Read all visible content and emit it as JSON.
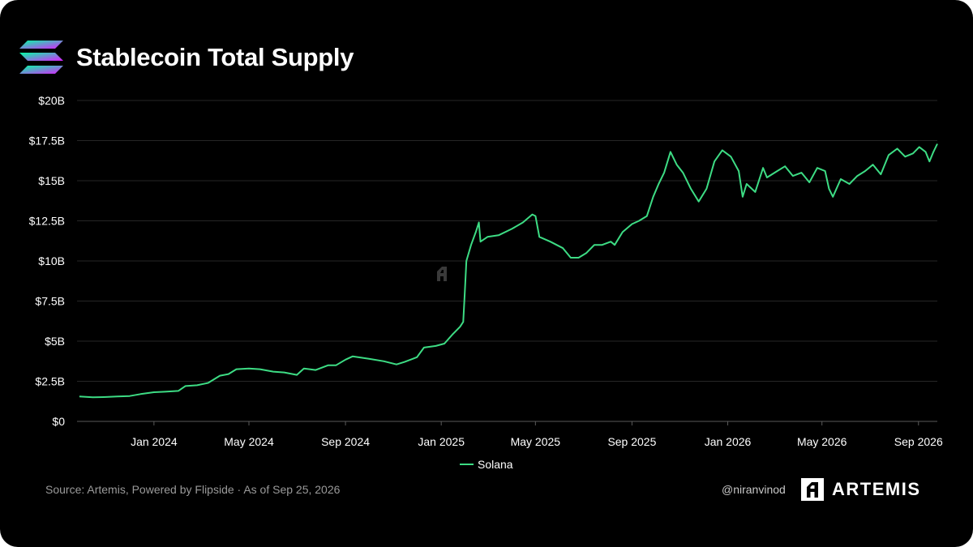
{
  "header": {
    "title": "Stablecoin Total Supply",
    "logo_icon": "solana-logo-icon"
  },
  "chart_data": {
    "type": "line",
    "title": "Stablecoin Total Supply",
    "xlabel": "",
    "ylabel": "",
    "ylim": [
      0,
      20
    ],
    "y_unit": "$B",
    "y_ticks": [
      0,
      2.5,
      5,
      7.5,
      10,
      12.5,
      15,
      17.5,
      20
    ],
    "y_tick_labels": [
      "$0",
      "$2.5B",
      "$5B",
      "$7.5B",
      "$10B",
      "$12.5B",
      "$15B",
      "$17.5B",
      "$20B"
    ],
    "x_range": [
      "2023-09-25",
      "2026-09-25"
    ],
    "x_ticks": [
      "2024-01-01",
      "2024-05-01",
      "2024-09-01",
      "2025-01-01",
      "2025-05-01",
      "2025-09-01",
      "2026-01-01",
      "2026-05-01",
      "2026-09-01"
    ],
    "x_tick_labels": [
      "Jan 2024",
      "May 2024",
      "Sep 2024",
      "Jan 2025",
      "May 2025",
      "Sep 2025",
      "Jan 2026",
      "May 2026",
      "Sep 2026"
    ],
    "grid": true,
    "legend_position": "bottom-center",
    "series": [
      {
        "name": "Solana",
        "color": "#3ddc84",
        "points": [
          [
            "2023-09-28",
            1.55
          ],
          [
            "2023-10-15",
            1.5
          ],
          [
            "2023-11-01",
            1.52
          ],
          [
            "2023-11-15",
            1.55
          ],
          [
            "2023-12-01",
            1.58
          ],
          [
            "2023-12-15",
            1.7
          ],
          [
            "2024-01-01",
            1.82
          ],
          [
            "2024-01-15",
            1.85
          ],
          [
            "2024-02-01",
            1.9
          ],
          [
            "2024-02-10",
            2.2
          ],
          [
            "2024-02-25",
            2.25
          ],
          [
            "2024-03-10",
            2.4
          ],
          [
            "2024-03-25",
            2.85
          ],
          [
            "2024-04-05",
            2.95
          ],
          [
            "2024-04-15",
            3.25
          ],
          [
            "2024-05-01",
            3.3
          ],
          [
            "2024-05-15",
            3.25
          ],
          [
            "2024-06-01",
            3.1
          ],
          [
            "2024-06-15",
            3.05
          ],
          [
            "2024-07-01",
            2.9
          ],
          [
            "2024-07-10",
            3.3
          ],
          [
            "2024-07-25",
            3.2
          ],
          [
            "2024-08-10",
            3.5
          ],
          [
            "2024-08-20",
            3.5
          ],
          [
            "2024-09-01",
            3.85
          ],
          [
            "2024-09-10",
            4.05
          ],
          [
            "2024-10-01",
            3.9
          ],
          [
            "2024-10-20",
            3.75
          ],
          [
            "2024-11-05",
            3.55
          ],
          [
            "2024-11-15",
            3.7
          ],
          [
            "2024-12-01",
            4.0
          ],
          [
            "2024-12-10",
            4.6
          ],
          [
            "2024-12-25",
            4.7
          ],
          [
            "2025-01-05",
            4.85
          ],
          [
            "2025-01-15",
            5.4
          ],
          [
            "2025-01-25",
            5.9
          ],
          [
            "2025-01-29",
            6.2
          ],
          [
            "2025-01-31",
            8.0
          ],
          [
            "2025-02-02",
            10.0
          ],
          [
            "2025-02-08",
            11.0
          ],
          [
            "2025-02-14",
            11.8
          ],
          [
            "2025-02-18",
            12.4
          ],
          [
            "2025-02-20",
            11.2
          ],
          [
            "2025-03-01",
            11.5
          ],
          [
            "2025-03-15",
            11.6
          ],
          [
            "2025-04-01",
            12.0
          ],
          [
            "2025-04-15",
            12.4
          ],
          [
            "2025-04-27",
            12.9
          ],
          [
            "2025-05-01",
            12.8
          ],
          [
            "2025-05-06",
            11.5
          ],
          [
            "2025-05-20",
            11.2
          ],
          [
            "2025-06-05",
            10.8
          ],
          [
            "2025-06-15",
            10.2
          ],
          [
            "2025-06-25",
            10.2
          ],
          [
            "2025-07-05",
            10.5
          ],
          [
            "2025-07-15",
            11.0
          ],
          [
            "2025-07-25",
            11.0
          ],
          [
            "2025-08-05",
            11.2
          ],
          [
            "2025-08-10",
            11.0
          ],
          [
            "2025-08-20",
            11.8
          ],
          [
            "2025-09-01",
            12.3
          ],
          [
            "2025-09-10",
            12.5
          ],
          [
            "2025-09-20",
            12.8
          ],
          [
            "2025-09-28",
            14.0
          ],
          [
            "2025-10-05",
            14.8
          ],
          [
            "2025-10-12",
            15.5
          ],
          [
            "2025-10-20",
            16.8
          ],
          [
            "2025-10-28",
            16.0
          ],
          [
            "2025-11-05",
            15.5
          ],
          [
            "2025-11-15",
            14.5
          ],
          [
            "2025-11-25",
            13.7
          ],
          [
            "2025-12-05",
            14.5
          ],
          [
            "2025-12-15",
            16.2
          ],
          [
            "2025-12-25",
            16.9
          ],
          [
            "2026-01-05",
            16.5
          ],
          [
            "2026-01-15",
            15.6
          ],
          [
            "2026-01-20",
            14.0
          ],
          [
            "2026-01-25",
            14.8
          ],
          [
            "2026-02-05",
            14.3
          ],
          [
            "2026-02-15",
            15.8
          ],
          [
            "2026-02-20",
            15.2
          ],
          [
            "2026-03-05",
            15.6
          ],
          [
            "2026-03-15",
            15.9
          ],
          [
            "2026-03-25",
            15.3
          ],
          [
            "2026-04-05",
            15.5
          ],
          [
            "2026-04-15",
            14.9
          ],
          [
            "2026-04-25",
            15.8
          ],
          [
            "2026-05-05",
            15.6
          ],
          [
            "2026-05-10",
            14.5
          ],
          [
            "2026-05-15",
            14.0
          ],
          [
            "2026-05-25",
            15.1
          ],
          [
            "2026-06-05",
            14.8
          ],
          [
            "2026-06-15",
            15.3
          ],
          [
            "2026-06-25",
            15.6
          ],
          [
            "2026-07-05",
            16.0
          ],
          [
            "2026-07-15",
            15.4
          ],
          [
            "2026-07-25",
            16.6
          ],
          [
            "2026-08-05",
            17.0
          ],
          [
            "2026-08-15",
            16.5
          ],
          [
            "2026-08-25",
            16.7
          ],
          [
            "2026-09-02",
            17.1
          ],
          [
            "2026-09-10",
            16.8
          ],
          [
            "2026-09-15",
            16.2
          ],
          [
            "2026-09-20",
            16.8
          ],
          [
            "2026-09-25",
            17.3
          ]
        ]
      }
    ]
  },
  "watermark_icon": "artemis-watermark-icon",
  "footer": {
    "source": "Source: Artemis, Powered by Flipside · As of Sep 25, 2026",
    "handle": "@niranvinod",
    "brand": "ARTEMIS",
    "brand_icon": "artemis-logo-icon"
  },
  "colors": {
    "background": "#000000",
    "line": "#3ddc84",
    "grid": "#262626",
    "text": "#ffffff",
    "muted": "#9a9a9a"
  }
}
